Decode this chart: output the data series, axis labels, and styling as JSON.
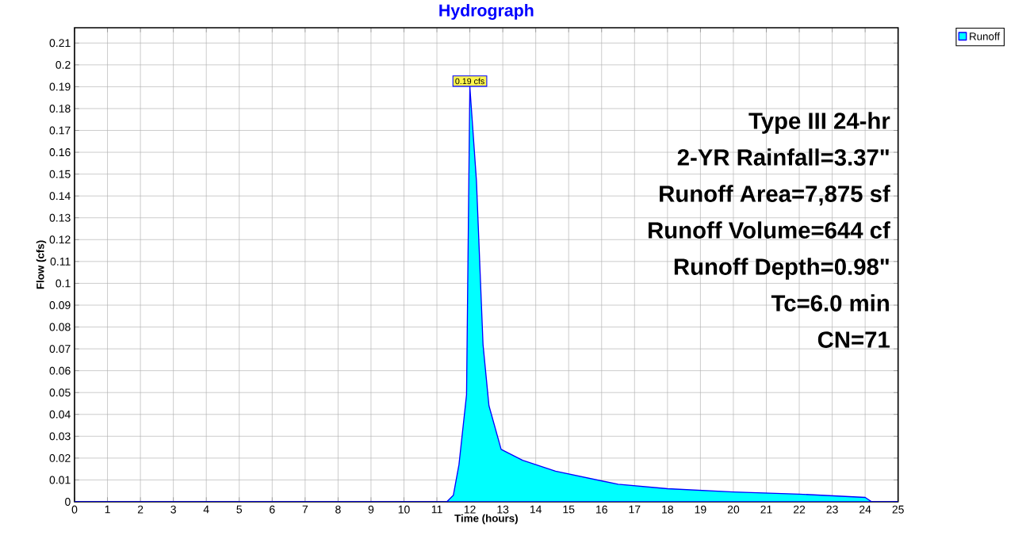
{
  "chart_data": {
    "type": "area",
    "title": "Hydrograph",
    "xlabel": "Time  (hours)",
    "ylabel": "Flow  (cfs)",
    "x": [
      0,
      11.3,
      11.5,
      11.67,
      11.9,
      12.0,
      12.2,
      12.4,
      12.58,
      12.95,
      13.6,
      14.6,
      16.5,
      18,
      20,
      22,
      24,
      24.2,
      25
    ],
    "series": [
      {
        "name": "Runoff",
        "color": "#00ffff",
        "values": [
          0,
          0,
          0.003,
          0.017,
          0.049,
          0.19,
          0.147,
          0.072,
          0.044,
          0.024,
          0.019,
          0.014,
          0.008,
          0.006,
          0.0045,
          0.0035,
          0.002,
          0,
          0
        ]
      }
    ],
    "xlim": [
      0,
      25
    ],
    "ylim": [
      0,
      0.217
    ],
    "xticks": [
      0,
      1,
      2,
      3,
      4,
      5,
      6,
      7,
      8,
      9,
      10,
      11,
      12,
      13,
      14,
      15,
      16,
      17,
      18,
      19,
      20,
      21,
      22,
      23,
      24,
      25
    ],
    "yticks": [
      0,
      0.01,
      0.02,
      0.03,
      0.04,
      0.05,
      0.06,
      0.07,
      0.08,
      0.09,
      0.1,
      0.11,
      0.12,
      0.13,
      0.14,
      0.15,
      0.16,
      0.17,
      0.18,
      0.19,
      0.2,
      0.21
    ],
    "annotations": [
      {
        "text": "0.19 cfs",
        "x": 12.0,
        "y": 0.19
      },
      "Type III 24-hr",
      "2-YR Rainfall=3.37\"",
      "Runoff Area=7,875 sf",
      "Runoff Volume=644 cf",
      "Runoff Depth=0.98\"",
      "Tc=6.0 min",
      "CN=71"
    ],
    "grid": true,
    "legend": "top right"
  }
}
